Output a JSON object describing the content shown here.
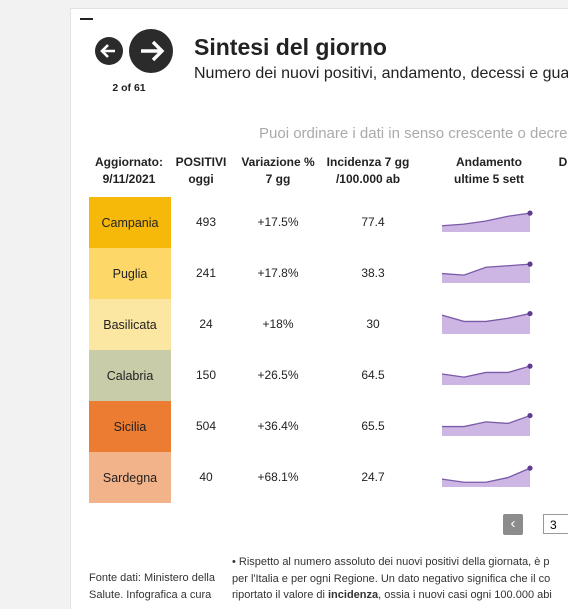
{
  "header": {
    "counter": "2 of 61",
    "title": "Sintesi del giorno",
    "subtitle": "Numero dei nuovi positivi, andamento, decessi e gua"
  },
  "hint": "Puoi ordinare i dati in senso crescente o decres",
  "table": {
    "columns": [
      "Aggiornato: 9/11/2021",
      "POSITIVI oggi",
      "Variazione % 7 gg",
      "Incidenza 7 gg /100.000 ab",
      "Andamento ultime 5 sett",
      "D"
    ],
    "trend_ylim": [
      0,
      7
    ],
    "rows": [
      {
        "region": "Campania",
        "color": "#f6b90a",
        "positivi": 493,
        "variazione": "+17.5%",
        "incidenza": 77.4,
        "trend": [
          2,
          2.5,
          3.5,
          5,
          6
        ]
      },
      {
        "region": "Puglia",
        "color": "#fdd868",
        "positivi": 241,
        "variazione": "+17.8%",
        "incidenza": 38.3,
        "trend": [
          3,
          2.5,
          5,
          5.5,
          6
        ]
      },
      {
        "region": "Basilicata",
        "color": "#fbe6a2",
        "positivi": 24,
        "variazione": "+18%",
        "incidenza": 30,
        "trend": [
          6,
          4,
          4,
          5,
          6.5
        ]
      },
      {
        "region": "Calabria",
        "color": "#c9cca8",
        "positivi": 150,
        "variazione": "+26.5%",
        "incidenza": 64.5,
        "trend": [
          3.5,
          2.5,
          4,
          4,
          6
        ]
      },
      {
        "region": "Sicilia",
        "color": "#ec7c32",
        "positivi": 504,
        "variazione": "+36.4%",
        "incidenza": 65.5,
        "trend": [
          3,
          3,
          4.5,
          4,
          6.5
        ]
      },
      {
        "region": "Sardegna",
        "color": "#f2b28a",
        "positivi": 40,
        "variazione": "+68.1%",
        "incidenza": 24.7,
        "trend": [
          2.5,
          1.5,
          1.5,
          3,
          6
        ]
      }
    ]
  },
  "pagination": {
    "prev": "‹",
    "page": "3"
  },
  "footer": {
    "source": [
      "Fonte dati: Ministero della",
      "Salute. Infografica a cura"
    ],
    "note": [
      "• Rispetto al numero assoluto dei nuovi positivi della giornata, è p",
      "per l'Italia e per ogni Regione. Un dato negativo significa che il co"
    ],
    "note_last": [
      "riportato il valore di ",
      "incidenza",
      ", ossia i nuovi casi ogni 100.000 abi"
    ]
  }
}
